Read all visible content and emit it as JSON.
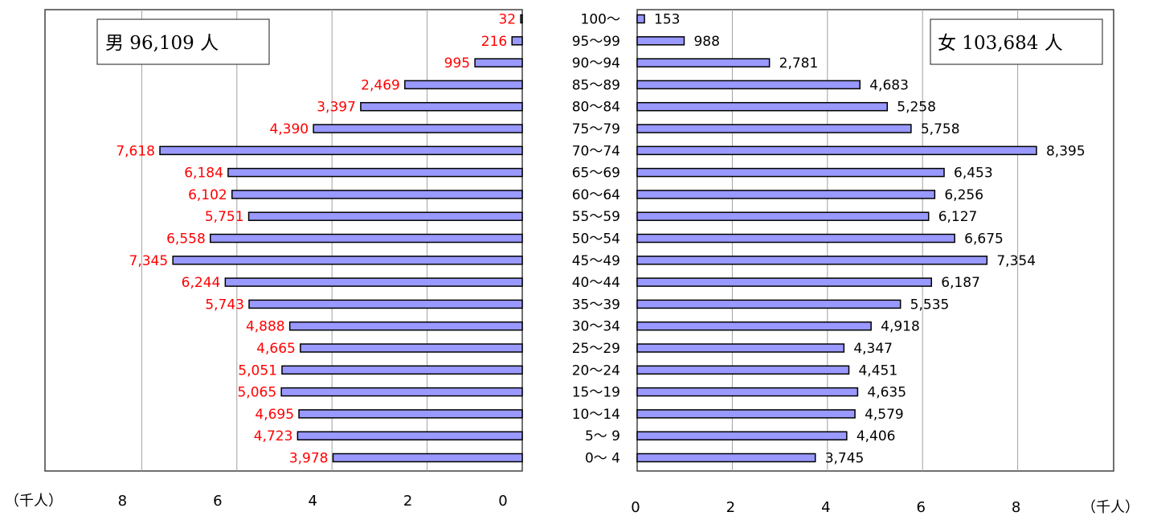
{
  "chart_data": {
    "type": "bar",
    "orientation": "horizontal",
    "layout": "population-pyramid",
    "unit_label": "（千人）",
    "categories": [
      "100～",
      "95～99",
      "90～94",
      "85～89",
      "80～84",
      "75～79",
      "70～74",
      "65～69",
      "60～64",
      "55～59",
      "50～54",
      "45～49",
      "40～44",
      "35～39",
      "30～34",
      "25～29",
      "20～24",
      "15～19",
      "10～14",
      "5～ 9",
      "0～ 4"
    ],
    "series": [
      {
        "name": "男",
        "total_label": "男 96,109 人",
        "color": "#9999ff",
        "label_color": "#ff0000",
        "values": [
          32,
          216,
          995,
          2469,
          3397,
          4390,
          7618,
          6184,
          6102,
          5751,
          6558,
          7345,
          6244,
          5743,
          4888,
          4665,
          5051,
          5065,
          4695,
          4723,
          3978
        ],
        "value_labels": [
          "32",
          "216",
          "995",
          "2,469",
          "3,397",
          "4,390",
          "7,618",
          "6,184",
          "6,102",
          "5,751",
          "6,558",
          "7,345",
          "6,244",
          "5,743",
          "4,888",
          "4,665",
          "5,051",
          "5,065",
          "4,695",
          "4,723",
          "3,978"
        ]
      },
      {
        "name": "女",
        "total_label": "女 103,684 人",
        "color": "#9999ff",
        "label_color": "#000000",
        "values": [
          153,
          988,
          2781,
          4683,
          5258,
          5758,
          8395,
          6453,
          6256,
          6127,
          6675,
          7354,
          6187,
          5535,
          4918,
          4347,
          4451,
          4635,
          4579,
          4406,
          3745
        ],
        "value_labels": [
          "153",
          "988",
          "2,781",
          "4,683",
          "5,258",
          "5,758",
          "8,395",
          "6,453",
          "6,256",
          "6,127",
          "6,675",
          "7,354",
          "6,187",
          "5,535",
          "4,918",
          "4,347",
          "4,451",
          "4,635",
          "4,579",
          "4,406",
          "3,745"
        ]
      }
    ],
    "axis_male": {
      "ticks": [
        "8",
        "6",
        "4",
        "2",
        "0"
      ],
      "tick_values": [
        8,
        6,
        4,
        2,
        0
      ],
      "range": [
        0,
        10
      ]
    },
    "axis_female": {
      "ticks": [
        "0",
        "2",
        "4",
        "6",
        "8"
      ],
      "tick_values": [
        0,
        2,
        4,
        6,
        8
      ],
      "range": [
        0,
        10
      ]
    },
    "grid": true,
    "legend_position_male": "top-left",
    "legend_position_female": "top-right"
  }
}
